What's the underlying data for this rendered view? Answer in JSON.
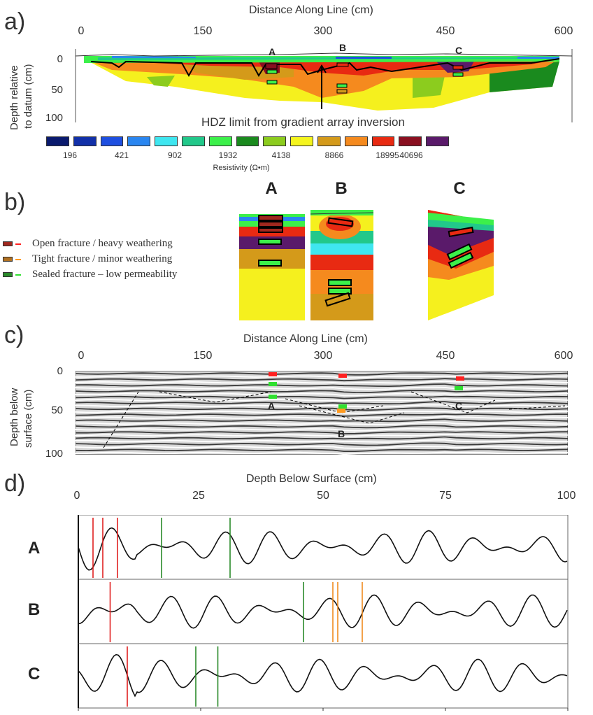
{
  "panel_a": {
    "label": "a)",
    "x_title": "Distance Along Line (cm)",
    "x_ticks": [
      "0",
      "150",
      "300",
      "450",
      "600"
    ],
    "y_title_lines": [
      "Depth relative",
      "to datum (cm)"
    ],
    "y_ticks": [
      "0",
      "50",
      "100"
    ],
    "markers": [
      "A",
      "B",
      "C"
    ],
    "annotation": "HDZ limit from gradient array inversion",
    "colorbar": {
      "colors": [
        "#0a1a6e",
        "#1230a8",
        "#1e4fe0",
        "#2a86f0",
        "#3fe6f0",
        "#22c88a",
        "#3cf04a",
        "#1a8a1e",
        "#8ccc1e",
        "#f5f51e",
        "#d49a1a",
        "#f58a1e",
        "#e82a12",
        "#8a1020",
        "#5a1a6a"
      ],
      "labels": [
        "196",
        "421",
        "902",
        "1932",
        "4138",
        "8866",
        "18995",
        "40696"
      ],
      "title": "Resistivity (Ω•m)"
    }
  },
  "panel_b": {
    "label": "b)",
    "legend": [
      {
        "text": "Open fracture / heavy weathering",
        "swatch": "#a0281e",
        "dash": "#ff2020"
      },
      {
        "text": "Tight fracture / minor weathering",
        "swatch": "#b07020",
        "dash": "#ff9a20"
      },
      {
        "text": "Sealed fracture – low permeability",
        "swatch": "#2a8a2a",
        "dash": "#30e030"
      }
    ],
    "insets": [
      "A",
      "B",
      "C"
    ]
  },
  "panel_c": {
    "label": "c)",
    "x_title": "Distance Along Line (cm)",
    "x_ticks": [
      "0",
      "150",
      "300",
      "450",
      "600"
    ],
    "y_title_lines": [
      "Depth below",
      "surface (cm)"
    ],
    "y_ticks": [
      "0",
      "50",
      "100"
    ],
    "markers": [
      "A",
      "B",
      "C"
    ]
  },
  "panel_d": {
    "label": "d)",
    "x_title": "Depth Below Surface (cm)",
    "x_ticks": [
      "0",
      "25",
      "50",
      "75",
      "100"
    ],
    "rows": [
      "A",
      "B",
      "C"
    ]
  },
  "chart_data": {
    "type": "line",
    "x_range": [
      0,
      100
    ],
    "series": [
      {
        "name": "A",
        "red_lines": [
          3,
          5,
          8
        ],
        "green_lines": [
          17,
          31
        ],
        "orange_lines": []
      },
      {
        "name": "B",
        "red_lines": [
          6.5
        ],
        "green_lines": [
          46
        ],
        "orange_lines": [
          52,
          53,
          58
        ]
      },
      {
        "name": "C",
        "red_lines": [
          10
        ],
        "green_lines": [
          24,
          28.5
        ],
        "orange_lines": []
      }
    ]
  }
}
